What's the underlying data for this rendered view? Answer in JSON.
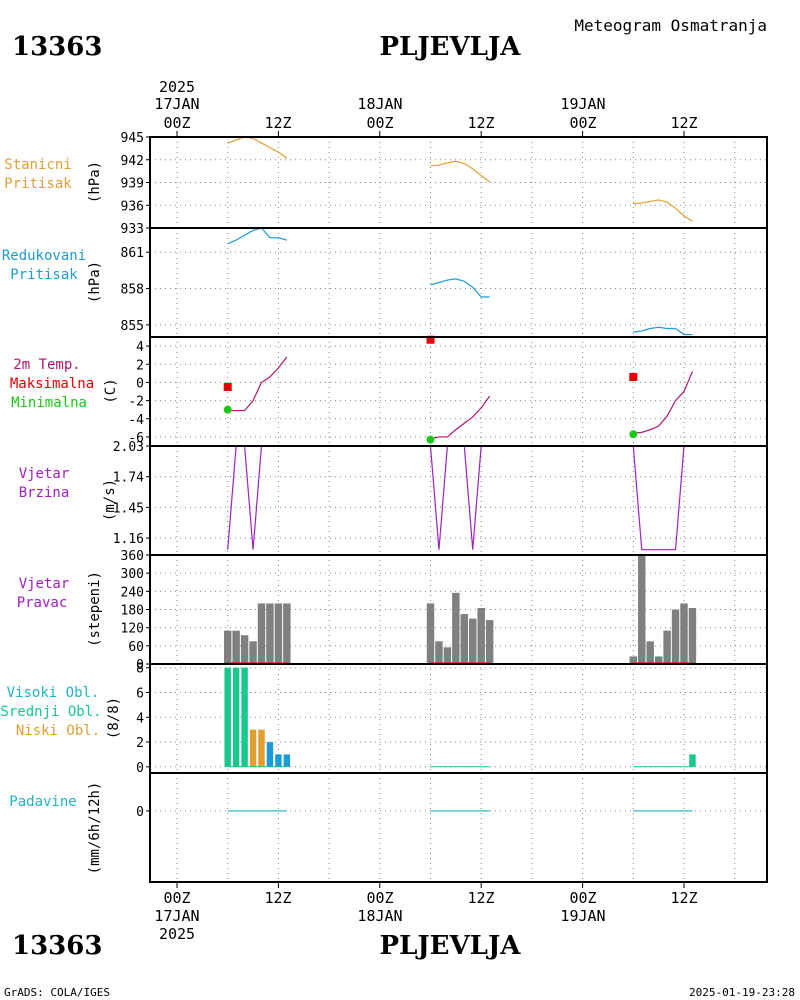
{
  "header": {
    "station_id": "13363",
    "station_name": "PLJEVLJA",
    "subtitle": "Meteogram Osmatranja",
    "footer_left": "GrADS: COLA/IGES",
    "footer_right": "2025-01-19-23:28"
  },
  "time_axis": {
    "year": "2025",
    "days": [
      "17JAN",
      "18JAN",
      "19JAN"
    ],
    "hour_labels": [
      "00Z",
      "12Z",
      "00Z",
      "12Z",
      "00Z",
      "12Z"
    ]
  },
  "colors": {
    "pressure_station": "#e0a030",
    "pressure_reduced": "#1e9ad6",
    "temp_curve": "#b0166e",
    "temp_max": "#e60000",
    "temp_min": "#19c819",
    "wind_speed": "#a020c0",
    "wind_dir_bar": "#808080",
    "cloud_high": "#19c88c",
    "cloud_mid": "#e0a030",
    "cloud_low": "#1e9ad6",
    "precip": "#1eb4c8"
  },
  "panels": {
    "station_pressure": {
      "labels": [
        "Stanicni",
        "Pritisak"
      ],
      "unit": "(hPa)"
    },
    "reduced_pressure": {
      "labels": [
        "Redukovani",
        "Pritisak"
      ],
      "unit": "(hPa)"
    },
    "temperature": {
      "labels": [
        "2m Temp.",
        "Maksimalna",
        "Minimalna"
      ],
      "unit": "(C)"
    },
    "wind_speed": {
      "labels": [
        "Vjetar",
        "Brzina"
      ],
      "unit": "(m/s)"
    },
    "wind_dir": {
      "labels": [
        "Vjetar",
        "Pravac"
      ],
      "unit": "(stepeni)"
    },
    "clouds": {
      "labels": [
        "Visoki Obl.",
        "Srednji Obl.",
        "Niski Obl."
      ],
      "unit": "(8/8)"
    },
    "precip": {
      "labels": [
        "Padavine"
      ],
      "unit": "(mm/6h/12h)"
    }
  },
  "chart_data": [
    {
      "id": "station_pressure",
      "type": "line",
      "x_unit": "hours since 17JAN2025 00Z",
      "ylim": [
        933,
        945
      ],
      "yticks": [
        945,
        942,
        939,
        936,
        933
      ],
      "series": [
        {
          "x": [
            6,
            7,
            8,
            9,
            10,
            11,
            12,
            13
          ],
          "y": [
            944.2,
            944.6,
            945.0,
            944.8,
            944.2,
            943.6,
            943.0,
            942.2
          ]
        },
        {
          "x": [
            30,
            31,
            32,
            33,
            34,
            35,
            36,
            37
          ],
          "y": [
            941.2,
            941.3,
            941.6,
            941.8,
            941.5,
            940.8,
            939.9,
            939.1
          ]
        },
        {
          "x": [
            54,
            55,
            56,
            57,
            58,
            59,
            60,
            61
          ],
          "y": [
            936.2,
            936.3,
            936.5,
            936.7,
            936.4,
            935.6,
            934.6,
            933.9
          ]
        }
      ]
    },
    {
      "id": "reduced_pressure",
      "type": "line",
      "x_unit": "hours since 17JAN2025 00Z",
      "ylim": [
        854,
        863
      ],
      "yticks": [
        861,
        858,
        855
      ],
      "series": [
        {
          "x": [
            6,
            7,
            8,
            9,
            10,
            11,
            12,
            13
          ],
          "y": [
            861.7,
            862.0,
            862.4,
            862.8,
            863.0,
            862.2,
            862.2,
            862.0
          ]
        },
        {
          "x": [
            30,
            31,
            32,
            33,
            34,
            35,
            36,
            37
          ],
          "y": [
            858.3,
            858.5,
            858.7,
            858.8,
            858.6,
            858.1,
            857.3,
            857.3
          ]
        },
        {
          "x": [
            54,
            55,
            56,
            57,
            58,
            59,
            60,
            61
          ],
          "y": [
            854.4,
            854.5,
            854.7,
            854.8,
            854.7,
            854.7,
            854.2,
            854.2
          ]
        }
      ]
    },
    {
      "id": "temperature",
      "type": "line",
      "x_unit": "hours since 17JAN2025 00Z",
      "ylim": [
        -7,
        5
      ],
      "yticks": [
        4,
        2,
        0,
        -2,
        -4,
        -6
      ],
      "series": [
        {
          "x": [
            6,
            7,
            8,
            9,
            10,
            11,
            12,
            13
          ],
          "y": [
            -3.1,
            -3.1,
            -3.1,
            -2.0,
            0.0,
            0.6,
            1.6,
            2.8
          ]
        },
        {
          "x": [
            30,
            31,
            32,
            33,
            34,
            35,
            36,
            37
          ],
          "y": [
            -6.2,
            -6.0,
            -6.0,
            -5.2,
            -4.5,
            -3.8,
            -2.8,
            -1.5
          ]
        },
        {
          "x": [
            54,
            55,
            56,
            57,
            58,
            59,
            60,
            61
          ],
          "y": [
            -5.6,
            -5.5,
            -5.2,
            -4.8,
            -3.7,
            -2.0,
            -1.0,
            1.2
          ]
        }
      ],
      "max_points": [
        {
          "x": 6,
          "y": -0.5
        },
        {
          "x": 30,
          "y": 4.7
        },
        {
          "x": 54,
          "y": 0.6
        }
      ],
      "min_points": [
        {
          "x": 6,
          "y": -3.0
        },
        {
          "x": 30,
          "y": -6.3
        },
        {
          "x": 54,
          "y": -5.7
        }
      ]
    },
    {
      "id": "wind_speed",
      "type": "line",
      "x_unit": "hours since 17JAN2025 00Z",
      "ylim": [
        1.0,
        2.03
      ],
      "yticks": [
        2.03,
        1.74,
        1.45,
        1.16
      ],
      "series": [
        {
          "x": [
            6,
            7,
            8,
            9,
            10,
            11,
            12,
            13
          ],
          "y": [
            1.05,
            2.03,
            2.03,
            1.05,
            2.03,
            2.03,
            2.03,
            2.03
          ]
        },
        {
          "x": [
            30,
            31,
            32,
            33,
            34,
            35,
            36,
            37
          ],
          "y": [
            2.03,
            1.05,
            2.03,
            2.03,
            2.03,
            1.05,
            2.03,
            2.03
          ]
        },
        {
          "x": [
            54,
            55,
            56,
            57,
            58,
            59,
            60,
            61
          ],
          "y": [
            2.03,
            1.05,
            1.05,
            1.05,
            1.05,
            1.05,
            2.03,
            2.03
          ]
        }
      ]
    },
    {
      "id": "wind_dir",
      "type": "bar",
      "x_unit": "hours since 17JAN2025 00Z",
      "ylim": [
        0,
        360
      ],
      "yticks": [
        360,
        300,
        240,
        180,
        120,
        60,
        0
      ],
      "x": [
        6,
        7,
        8,
        9,
        10,
        11,
        12,
        13,
        30,
        31,
        32,
        33,
        34,
        35,
        36,
        37,
        54,
        55,
        56,
        57,
        58,
        59,
        60,
        61
      ],
      "values": [
        110,
        110,
        95,
        75,
        200,
        200,
        200,
        200,
        200,
        75,
        55,
        235,
        165,
        150,
        185,
        145,
        25,
        360,
        75,
        25,
        110,
        180,
        200,
        185
      ]
    },
    {
      "id": "clouds",
      "type": "bar",
      "x_unit": "hours since 17JAN2025 00Z",
      "ylim": [
        -0.5,
        8.3
      ],
      "yticks": [
        8,
        6,
        4,
        2,
        0
      ],
      "bars": [
        {
          "layer": "high",
          "x": 6,
          "value": 8
        },
        {
          "layer": "high",
          "x": 7,
          "value": 8
        },
        {
          "layer": "high",
          "x": 8,
          "value": 8
        },
        {
          "layer": "mid",
          "x": 9,
          "value": 3
        },
        {
          "layer": "mid",
          "x": 10,
          "value": 3
        },
        {
          "layer": "low",
          "x": 11,
          "value": 2
        },
        {
          "layer": "low",
          "x": 12,
          "value": 1
        },
        {
          "layer": "low",
          "x": 13,
          "value": 1
        },
        {
          "layer": "high",
          "x": 61,
          "value": 1
        }
      ]
    },
    {
      "id": "precip",
      "type": "line",
      "x_unit": "hours since 17JAN2025 00Z",
      "ylim": [
        -1.5,
        0.8
      ],
      "yticks": [
        0
      ],
      "series": [
        {
          "x": [
            6,
            13
          ],
          "y": [
            0,
            0
          ]
        },
        {
          "x": [
            30,
            37
          ],
          "y": [
            0,
            0
          ]
        },
        {
          "x": [
            54,
            61
          ],
          "y": [
            0,
            0
          ]
        }
      ]
    }
  ]
}
